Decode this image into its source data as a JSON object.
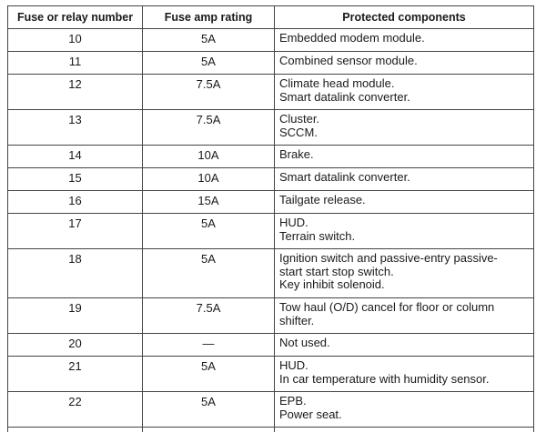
{
  "table": {
    "headers": {
      "number": "Fuse or relay number",
      "rating": "Fuse amp rating",
      "components": "Protected components"
    },
    "rows": [
      {
        "number": "10",
        "rating": "5A",
        "components": [
          "Embedded modem module."
        ]
      },
      {
        "number": "11",
        "rating": "5A",
        "components": [
          "Combined sensor module."
        ]
      },
      {
        "number": "12",
        "rating": "7.5A",
        "components": [
          "Climate head module.",
          "Smart datalink converter."
        ]
      },
      {
        "number": "13",
        "rating": "7.5A",
        "components": [
          "Cluster.",
          "SCCM."
        ]
      },
      {
        "number": "14",
        "rating": "10A",
        "components": [
          "Brake."
        ]
      },
      {
        "number": "15",
        "rating": "10A",
        "components": [
          "Smart datalink converter."
        ]
      },
      {
        "number": "16",
        "rating": "15A",
        "components": [
          "Tailgate release."
        ]
      },
      {
        "number": "17",
        "rating": "5A",
        "components": [
          "HUD.",
          "Terrain switch."
        ]
      },
      {
        "number": "18",
        "rating": "5A",
        "components": [
          "Ignition switch and passive-entry passive-",
          "start start stop switch.",
          "Key inhibit solenoid."
        ]
      },
      {
        "number": "19",
        "rating": "7.5A",
        "components": [
          "Tow haul (O/D) cancel for floor or column",
          "shifter."
        ]
      },
      {
        "number": "20",
        "rating": "—",
        "components": [
          "Not used."
        ]
      },
      {
        "number": "21",
        "rating": "5A",
        "components": [
          "HUD.",
          "In car temperature with humidity sensor."
        ]
      },
      {
        "number": "22",
        "rating": "5A",
        "components": [
          "EPB.",
          "Power seat."
        ]
      }
    ]
  }
}
